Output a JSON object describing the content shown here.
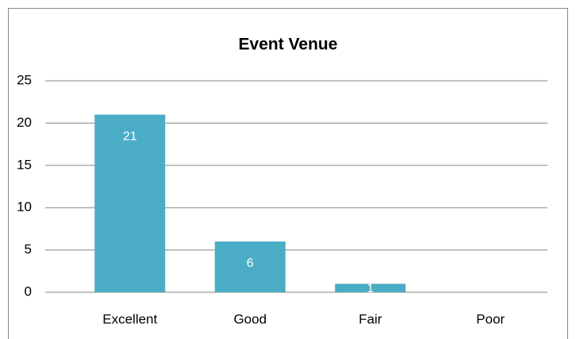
{
  "chart_data": {
    "type": "bar",
    "title": "Event Venue",
    "categories": [
      "Excellent",
      "Good",
      "Fair",
      "Poor"
    ],
    "values": [
      21,
      6,
      1,
      0
    ],
    "color": "#4bacc6",
    "ylim": [
      0,
      25
    ],
    "yticks": [
      0,
      5,
      10,
      15,
      20,
      25
    ],
    "grid": true
  }
}
